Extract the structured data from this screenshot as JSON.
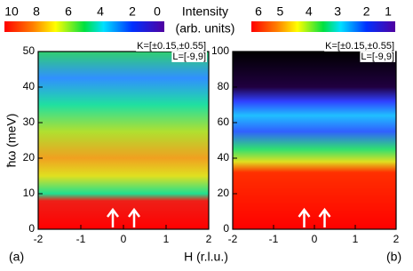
{
  "chart_data": [
    {
      "type": "heatmap",
      "ylabel": "ħω (meV)",
      "xlabel": "H (r.l.u.)",
      "colorbar_title": "Intensity",
      "colorbar_units": "(arb. units)",
      "panel_label": "(a)",
      "annotations": [
        "K=[±0.15,±0.55]",
        "L=[-9,9]"
      ],
      "xlim": [
        -2,
        2
      ],
      "xticks": [
        -2,
        -1,
        0,
        1,
        2
      ],
      "ylim": [
        0,
        50
      ],
      "yticks": [
        0,
        10,
        20,
        30,
        40,
        50
      ],
      "colorbar": {
        "lim": [
          10,
          0
        ],
        "ticks": [
          10,
          8,
          6,
          4,
          2,
          0
        ]
      }
    },
    {
      "type": "heatmap",
      "panel_label": "(b)",
      "annotations": [
        "K=[±0.15,±0.55]",
        "L=[-9,9]"
      ],
      "xlim": [
        -2,
        2
      ],
      "xticks": [
        -2,
        -1,
        0,
        1,
        2
      ],
      "ylim": [
        0,
        100
      ],
      "yticks": [
        0,
        20,
        40,
        60,
        80,
        100
      ],
      "colorbar": {
        "lim": [
          6,
          1
        ],
        "ticks": [
          6,
          5,
          4,
          3,
          2,
          1
        ]
      }
    }
  ]
}
